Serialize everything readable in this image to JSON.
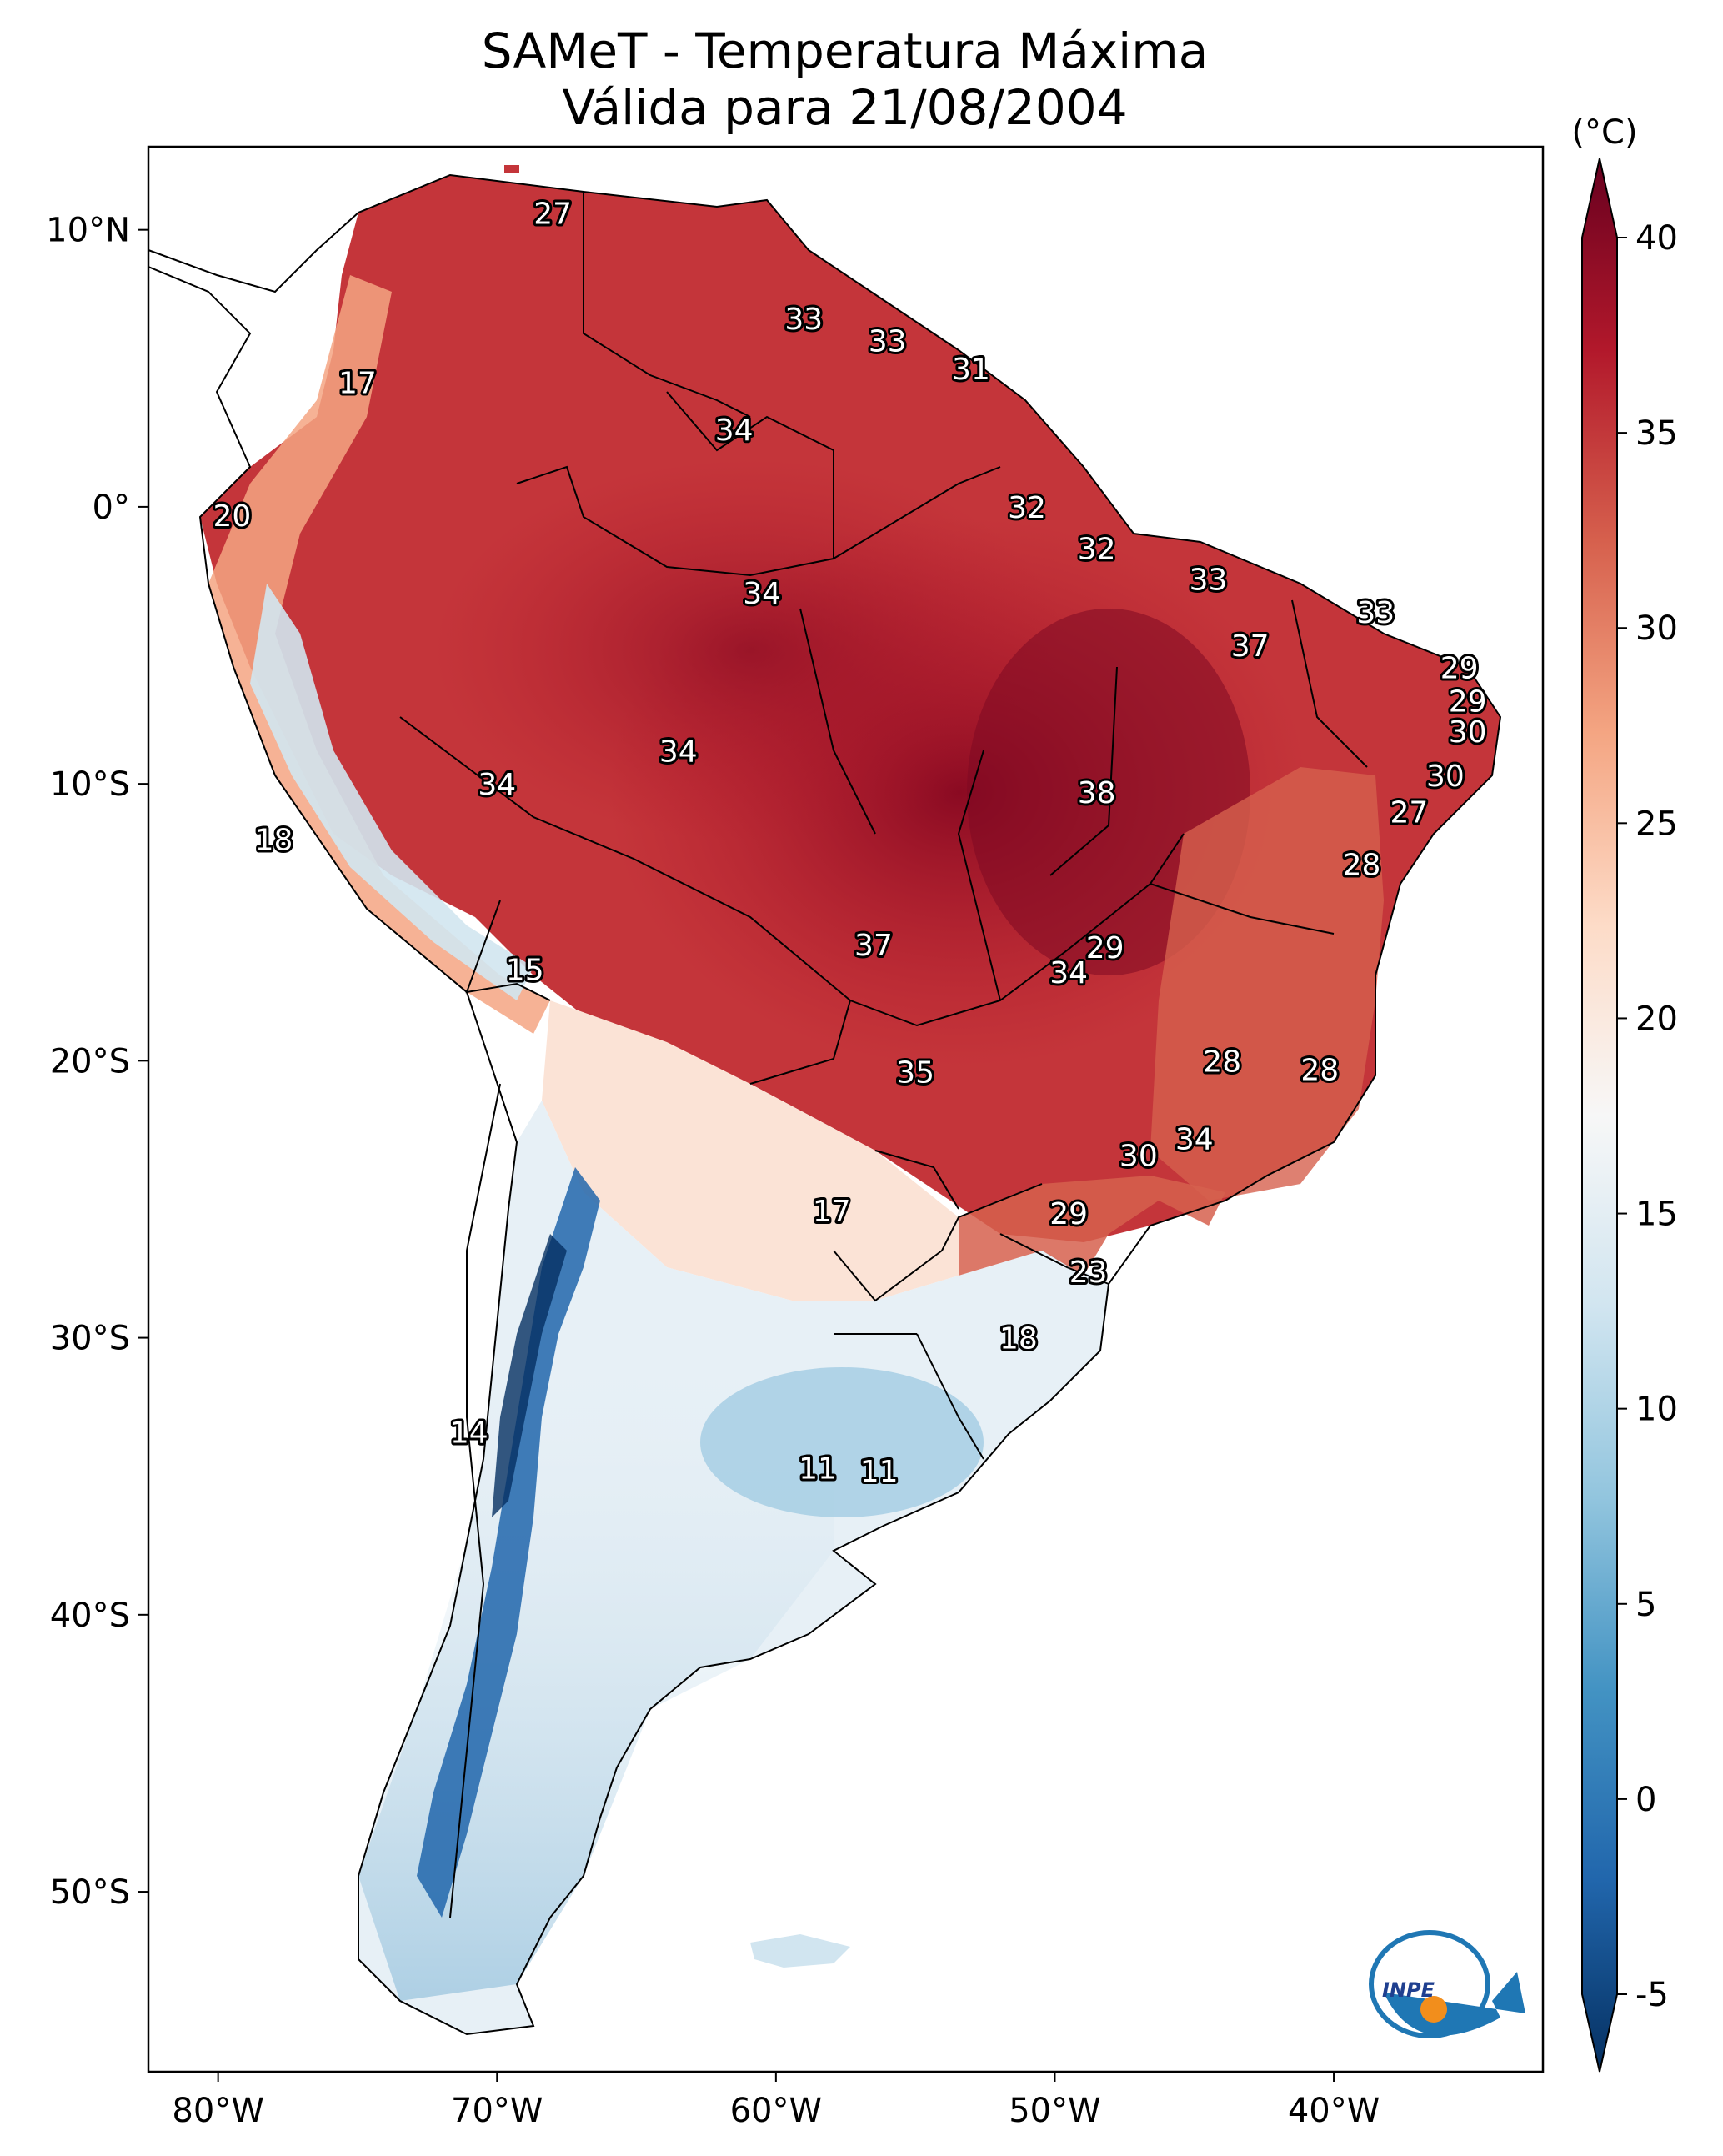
{
  "title": {
    "line1": "SAMeT - Temperatura Máxima",
    "line2": "Válida para 21/08/2004"
  },
  "map": {
    "lon_ticks": [
      "80°W",
      "70°W",
      "60°W",
      "50°W",
      "40°W"
    ],
    "lat_ticks": [
      "10°N",
      "0°",
      "10°S",
      "20°S",
      "30°S",
      "40°S",
      "50°S"
    ],
    "extent": {
      "lon_min": -82.5,
      "lon_max": -32.5,
      "lat_min": -56.5,
      "lat_max": 13.0
    },
    "contour_labels": [
      {
        "text": "27",
        "lon": -68.0,
        "lat": 10.6
      },
      {
        "text": "33",
        "lon": -59.0,
        "lat": 6.8
      },
      {
        "text": "33",
        "lon": -56.0,
        "lat": 6.0
      },
      {
        "text": "31",
        "lon": -53.0,
        "lat": 5.0
      },
      {
        "text": "17",
        "lon": -75.0,
        "lat": 4.5
      },
      {
        "text": "34",
        "lon": -61.5,
        "lat": 2.8
      },
      {
        "text": "20",
        "lon": -79.5,
        "lat": -0.3
      },
      {
        "text": "32",
        "lon": -51.0,
        "lat": 0.0
      },
      {
        "text": "32",
        "lon": -48.5,
        "lat": -1.5
      },
      {
        "text": "33",
        "lon": -44.5,
        "lat": -2.6
      },
      {
        "text": "34",
        "lon": -60.5,
        "lat": -3.1
      },
      {
        "text": "33",
        "lon": -38.5,
        "lat": -3.8
      },
      {
        "text": "37",
        "lon": -43.0,
        "lat": -5.0
      },
      {
        "text": "29",
        "lon": -35.5,
        "lat": -5.8
      },
      {
        "text": "29",
        "lon": -35.2,
        "lat": -7.0
      },
      {
        "text": "30",
        "lon": -35.2,
        "lat": -8.1
      },
      {
        "text": "34",
        "lon": -63.5,
        "lat": -8.8
      },
      {
        "text": "34",
        "lon": -70.0,
        "lat": -10.0
      },
      {
        "text": "38",
        "lon": -48.5,
        "lat": -10.3
      },
      {
        "text": "30",
        "lon": -36.0,
        "lat": -9.7
      },
      {
        "text": "27",
        "lon": -37.3,
        "lat": -11.0
      },
      {
        "text": "18",
        "lon": -78.0,
        "lat": -12.0
      },
      {
        "text": "28",
        "lon": -39.0,
        "lat": -12.9
      },
      {
        "text": "37",
        "lon": -56.5,
        "lat": -15.8
      },
      {
        "text": "29",
        "lon": -48.2,
        "lat": -15.9
      },
      {
        "text": "34",
        "lon": -49.5,
        "lat": -16.8
      },
      {
        "text": "15",
        "lon": -69.0,
        "lat": -16.7
      },
      {
        "text": "28",
        "lon": -44.0,
        "lat": -20.0
      },
      {
        "text": "28",
        "lon": -40.5,
        "lat": -20.3
      },
      {
        "text": "35",
        "lon": -55.0,
        "lat": -20.4
      },
      {
        "text": "34",
        "lon": -45.0,
        "lat": -22.8
      },
      {
        "text": "30",
        "lon": -47.0,
        "lat": -23.4
      },
      {
        "text": "17",
        "lon": -58.0,
        "lat": -25.4
      },
      {
        "text": "29",
        "lon": -49.5,
        "lat": -25.5
      },
      {
        "text": "23",
        "lon": -48.8,
        "lat": -27.6
      },
      {
        "text": "18",
        "lon": -51.3,
        "lat": -30.0
      },
      {
        "text": "14",
        "lon": -71.0,
        "lat": -33.4
      },
      {
        "text": "11",
        "lon": -58.5,
        "lat": -34.7
      },
      {
        "text": "11",
        "lon": -56.3,
        "lat": -34.8
      }
    ]
  },
  "colorbar": {
    "unit": "(°C)",
    "ticks": [
      "40",
      "35",
      "30",
      "25",
      "20",
      "15",
      "10",
      "5",
      "0",
      "-5"
    ],
    "vmin": -5,
    "vmax": 40,
    "colors": [
      "#053061",
      "#2166ac",
      "#4393c3",
      "#92c5de",
      "#d1e5f0",
      "#f7f7f7",
      "#fddbc7",
      "#f4a582",
      "#d6604d",
      "#b2182b",
      "#67001f"
    ]
  },
  "logo": {
    "text": "INPE"
  }
}
